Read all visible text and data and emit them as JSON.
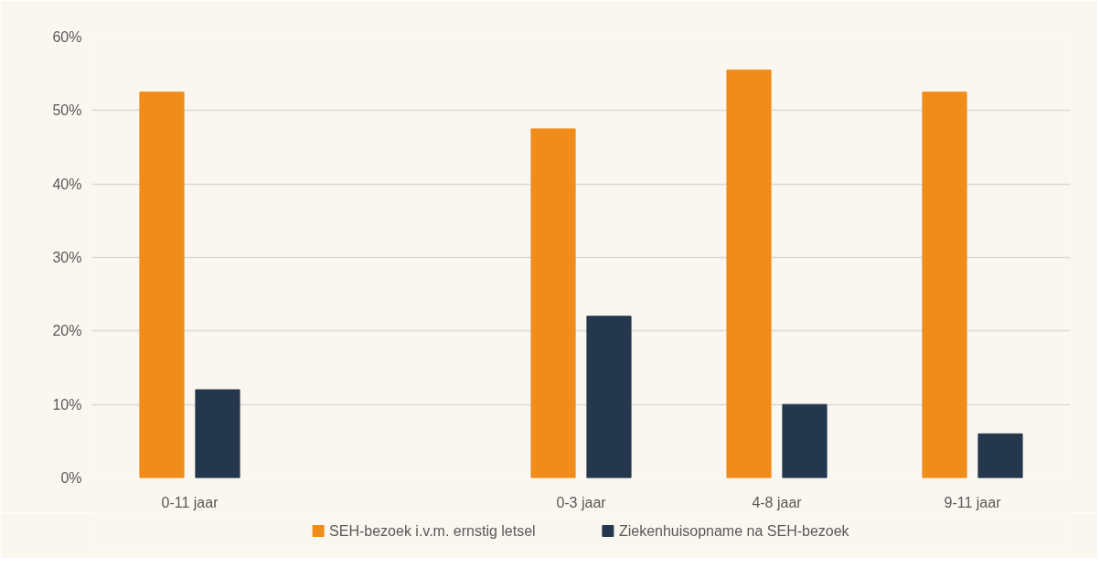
{
  "chart_data": {
    "type": "bar",
    "categories": [
      "0-11 jaar",
      null,
      "0-3 jaar",
      "4-8 jaar",
      "9-11 jaar"
    ],
    "series": [
      {
        "name": "SEH-bezoek i.v.m. ernstig letsel",
        "color": "#f08c1a",
        "values": [
          52.5,
          null,
          47.5,
          55.5,
          52.5
        ]
      },
      {
        "name": "Ziekenhuisopname na SEH-bezoek",
        "color": "#25374d",
        "values": [
          12,
          null,
          22,
          10,
          6
        ]
      }
    ],
    "ylim": [
      0,
      60
    ],
    "yticks": [
      {
        "value": 0,
        "label": "0%"
      },
      {
        "value": 10,
        "label": "10%"
      },
      {
        "value": 20,
        "label": "20%"
      },
      {
        "value": 30,
        "label": "30%"
      },
      {
        "value": 40,
        "label": "40%"
      },
      {
        "value": 50,
        "label": "50%"
      },
      {
        "value": 60,
        "label": "60%"
      }
    ],
    "grid": "y",
    "legend": "bottom"
  }
}
